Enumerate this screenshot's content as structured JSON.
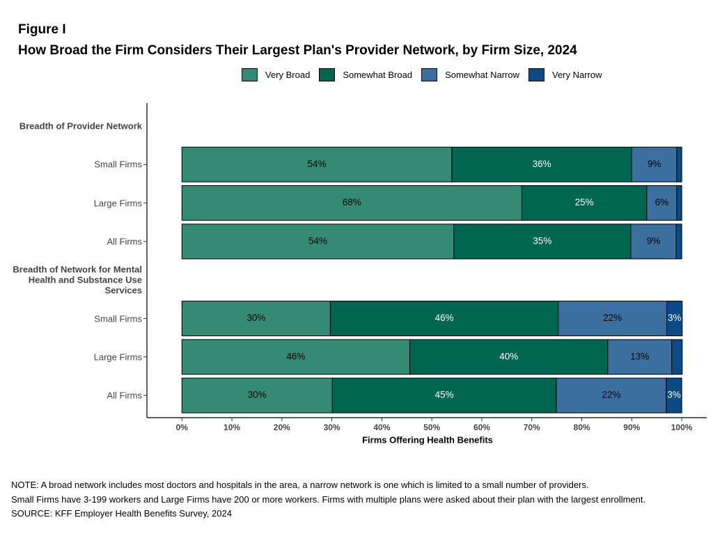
{
  "chart_data": {
    "type": "stacked-barh",
    "figure_label": "Figure I",
    "title": "How Broad the Firm Considers Their Largest Plan's Provider Network, by Firm Size, 2024",
    "xlabel": "Firms Offering Health Benefits",
    "categories": [
      "Breadth of Provider Network",
      "Small Firms",
      "Large Firms",
      "All Firms",
      "Breadth of Network for Mental Health and Substance Use Services",
      "Small Firms",
      "Large Firms",
      "All Firms"
    ],
    "series": [
      {
        "name": "Very Broad",
        "color": "#358a74",
        "label_color": "#000000",
        "values": [
          null,
          54,
          68,
          54.4,
          null,
          29.7,
          45.6,
          30.1
        ],
        "value_labels": [
          null,
          "54%",
          "68%",
          "54%",
          null,
          "30%",
          "46%",
          "30%"
        ]
      },
      {
        "name": "Somewhat Broad",
        "color": "#00664f",
        "label_color": "#ffffff",
        "values": [
          null,
          36,
          25,
          35.4,
          null,
          45.6,
          39.6,
          44.8
        ],
        "value_labels": [
          null,
          "36%",
          "25%",
          "35%",
          null,
          "46%",
          "40%",
          "45%"
        ]
      },
      {
        "name": "Somewhat Narrow",
        "color": "#3a6fa0",
        "label_color": "#000000",
        "values": [
          null,
          9,
          6,
          9.1,
          null,
          21.7,
          12.8,
          22
        ],
        "value_labels": [
          null,
          "9%",
          "6%",
          "9%",
          null,
          "22%",
          "13%",
          "22%"
        ]
      },
      {
        "name": "Very Narrow",
        "color": "#0b4a84",
        "label_color": "#ffffff",
        "values": [
          null,
          1,
          1,
          1.1,
          null,
          3.1,
          2.1,
          3.1
        ],
        "value_labels": [
          null,
          null,
          null,
          null,
          null,
          "3%",
          null,
          "3%"
        ]
      }
    ],
    "xlim": [
      -7,
      105
    ],
    "xticks": [
      {
        "value": 0,
        "label": "0%"
      },
      {
        "value": 10,
        "label": "10%"
      },
      {
        "value": 20,
        "label": "20%"
      },
      {
        "value": 30,
        "label": "30%"
      },
      {
        "value": 40,
        "label": "40%"
      },
      {
        "value": 50,
        "label": "50%"
      },
      {
        "value": 60,
        "label": "60%"
      },
      {
        "value": 70,
        "label": "70%"
      },
      {
        "value": 80,
        "label": "80%"
      },
      {
        "value": 90,
        "label": "90%"
      },
      {
        "value": 100,
        "label": "100%"
      }
    ],
    "notes": [
      "NOTE: A broad network includes most doctors and hospitals in the area, a narrow network is one which is limited to a small number of providers.",
      "Small Firms have 3-199 workers and Large Firms have 200 or more workers.  Firms with multiple plans were asked about their plan with the largest enrollment.",
      "SOURCE: KFF Employer Health Benefits Survey, 2024"
    ]
  }
}
